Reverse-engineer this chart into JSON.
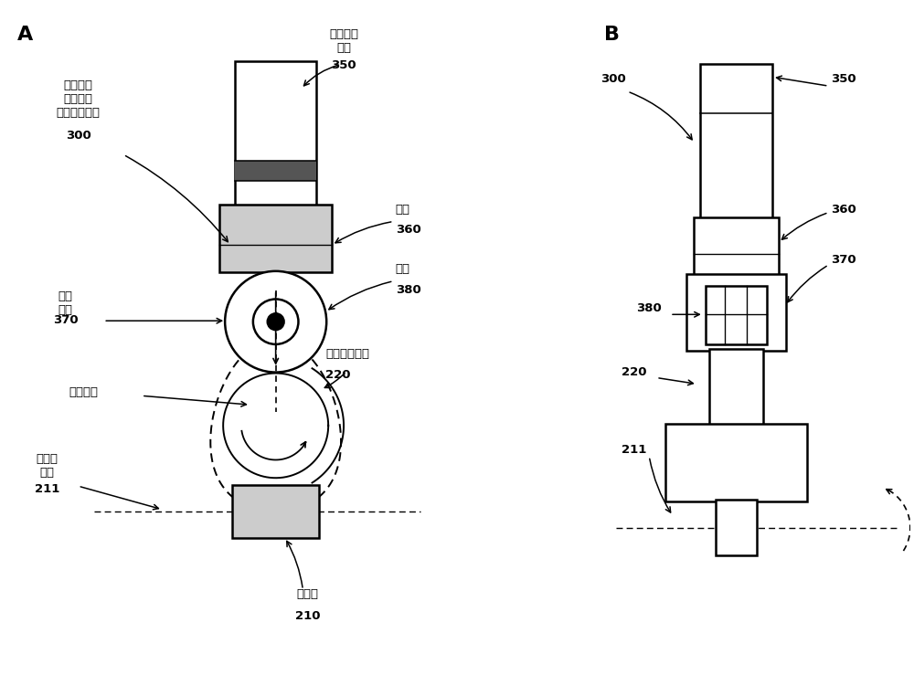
{
  "bg_color": "#ffffff",
  "fig_width": 10.0,
  "fig_height": 7.39,
  "panel_A_label": "A",
  "panel_B_label": "B",
  "labels": {
    "gas_valve": "气门挺杆\n本体",
    "gas_valve_num": "350",
    "conventional_roller": "常规滚轮\n挺杆组件\n（现有技术）",
    "conventional_roller_num": "300",
    "pushrod": "挺杆",
    "pushrod_num": "360",
    "roller": "滚子",
    "roller_num": "380",
    "roller_shell": "滚子\n外壳",
    "roller_shell_num": "370",
    "cam_lobe": "常规凸轮凸角",
    "cam_lobe_num": "220",
    "vertical_disp": "竖直位移",
    "cam_axis": "凸轮轴\n轴线",
    "cam_axis_num": "211",
    "cam_shaft": "凸轮轴",
    "cam_shaft_num": "210"
  }
}
